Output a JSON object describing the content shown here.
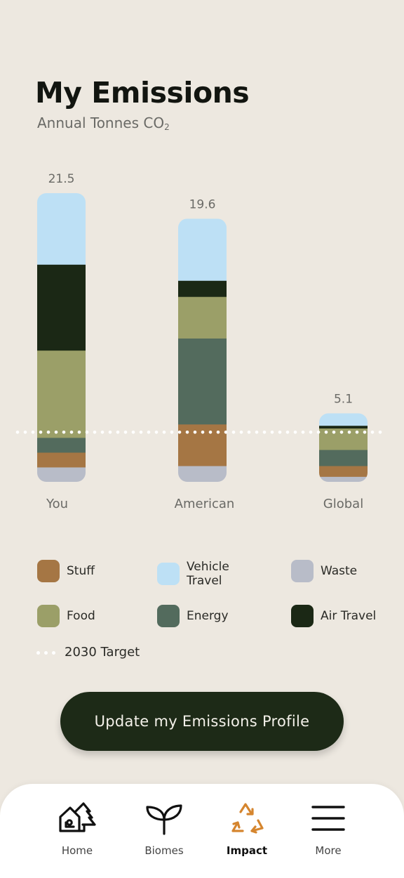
{
  "header": {
    "title": "My Emissions",
    "subtitle_main": "Annual Tonnes CO",
    "subtitle_sub": "2"
  },
  "chart_data": {
    "type": "bar",
    "stacked": true,
    "title": "My Emissions",
    "ylabel": "Annual Tonnes CO2",
    "categories": [
      "You",
      "American",
      "Global"
    ],
    "totals": [
      21.5,
      19.6,
      5.1
    ],
    "ylim": [
      0,
      21.5
    ],
    "target_value": 3.7,
    "series": [
      {
        "name": "Waste",
        "color": "#b8bcc8",
        "values": [
          1.1,
          1.2,
          0.4
        ]
      },
      {
        "name": "Stuff",
        "color": "#a57644",
        "values": [
          1.1,
          3.1,
          0.8
        ]
      },
      {
        "name": "Energy",
        "color": "#536b5d",
        "values": [
          1.1,
          6.4,
          1.2
        ]
      },
      {
        "name": "Food",
        "color": "#9b9f68",
        "values": [
          6.5,
          3.1,
          1.6
        ]
      },
      {
        "name": "Air Travel",
        "color": "#1b2815",
        "values": [
          6.4,
          1.2,
          0.2
        ]
      },
      {
        "name": "Vehicle Travel",
        "color": "#bde0f5",
        "values": [
          5.3,
          4.6,
          0.9
        ]
      }
    ]
  },
  "legend": {
    "items": [
      {
        "label": "Stuff",
        "color": "#a57644"
      },
      {
        "label": "Vehicle Travel",
        "color": "#bde0f5"
      },
      {
        "label": "Waste",
        "color": "#b8bcc8"
      },
      {
        "label": "Food",
        "color": "#9b9f68"
      },
      {
        "label": "Energy",
        "color": "#536b5d"
      },
      {
        "label": "Air Travel",
        "color": "#1b2815"
      }
    ],
    "target_label": "2030 Target"
  },
  "cta": {
    "label": "Update my Emissions Profile"
  },
  "nav": {
    "items": [
      {
        "label": "Home",
        "icon": "home-icon"
      },
      {
        "label": "Biomes",
        "icon": "sprout-icon"
      },
      {
        "label": "Impact",
        "icon": "recycle-icon",
        "active": true
      },
      {
        "label": "More",
        "icon": "menu-icon"
      }
    ],
    "accent": "#d5852e"
  }
}
